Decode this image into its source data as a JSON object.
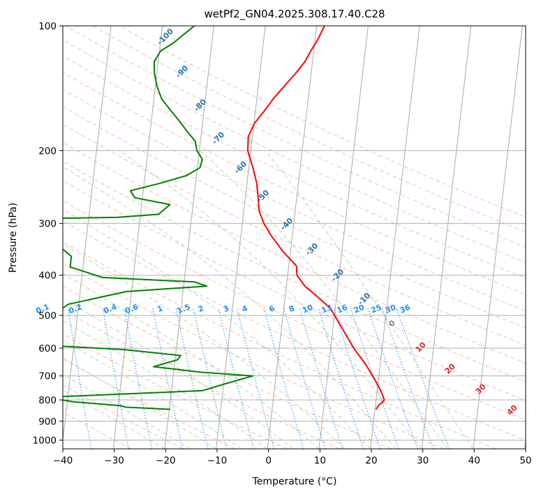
{
  "chart_data": {
    "type": "line",
    "title": "wetPf2_GN04.2025.308.17.40.C28",
    "xlabel": "Temperature (°C)",
    "ylabel": "Pressure (hPa)",
    "xlim": [
      -40,
      50
    ],
    "ylim": [
      1050,
      100
    ],
    "y_scale": "log",
    "grid": true,
    "x_ticks": [
      "−40",
      "−30",
      "−20",
      "−10",
      "0",
      "10",
      "20",
      "30",
      "40",
      "50"
    ],
    "y_ticks": [
      "100",
      "200",
      "300",
      "400",
      "500",
      "600",
      "700",
      "800",
      "900",
      "1000"
    ],
    "isotherm_labels": [
      "-100",
      "-90",
      "-80",
      "-70",
      "-60",
      "-50",
      "-40",
      "-30",
      "-20",
      "-10",
      "0",
      "10",
      "20",
      "30",
      "40"
    ],
    "mixing_ratio_labels": [
      "0.1",
      "0.2",
      "0.4",
      "0.6",
      "1",
      "1.5",
      "2",
      "3",
      "4",
      "6",
      "8",
      "10",
      "13",
      "16",
      "20",
      "25",
      "30",
      "36"
    ],
    "series": [
      {
        "color": "#ff0000",
        "points": [
          [
            20.2,
            843
          ],
          [
            20.6,
            825
          ],
          [
            21.4,
            808
          ],
          [
            21.6,
            800
          ],
          [
            21.2,
            780
          ],
          [
            20.7,
            760
          ],
          [
            19.5,
            720
          ],
          [
            17.3,
            660
          ],
          [
            14.5,
            600
          ],
          [
            12.8,
            560
          ],
          [
            11.0,
            520
          ],
          [
            9.0,
            480
          ],
          [
            6.2,
            450
          ],
          [
            3.6,
            425
          ],
          [
            1.8,
            400
          ],
          [
            1.5,
            380
          ],
          [
            -1.5,
            350
          ],
          [
            -4.2,
            320
          ],
          [
            -5.8,
            300
          ],
          [
            -7.0,
            280
          ],
          [
            -7.5,
            260
          ],
          [
            -8.1,
            240
          ],
          [
            -9.2,
            220
          ],
          [
            -10.6,
            200
          ],
          [
            -10.8,
            185
          ],
          [
            -9.9,
            172
          ],
          [
            -8.2,
            160
          ],
          [
            -6.8,
            150
          ],
          [
            -5.0,
            140
          ],
          [
            -3.0,
            130
          ],
          [
            -1.5,
            122
          ],
          [
            -0.6,
            115
          ],
          [
            0.5,
            108
          ],
          [
            1.5,
            100
          ]
        ]
      },
      {
        "color": "#008000",
        "points": [
          [
            -19.8,
            843
          ],
          [
            -28.5,
            833
          ],
          [
            -29.5,
            826
          ],
          [
            -39.0,
            808
          ],
          [
            -41.0,
            800
          ],
          [
            -44.0,
            788
          ],
          [
            -14.0,
            760
          ],
          [
            -9.5,
            730
          ],
          [
            -4.5,
            700
          ],
          [
            -15.0,
            685
          ],
          [
            -24.0,
            665
          ],
          [
            -19.5,
            640
          ],
          [
            -19.0,
            625
          ],
          [
            -30.0,
            605
          ],
          [
            -46.0,
            590
          ],
          [
            -50.5,
            565
          ],
          [
            -42.0,
            470
          ],
          [
            -31.0,
            438
          ],
          [
            -15.5,
            425
          ],
          [
            -18.0,
            415
          ],
          [
            -36.0,
            405
          ],
          [
            -42.5,
            382
          ],
          [
            -42.5,
            360
          ],
          [
            -46.5,
            330
          ],
          [
            -50.5,
            292
          ],
          [
            -34.5,
            290
          ],
          [
            -26.5,
            285
          ],
          [
            -24.5,
            270
          ],
          [
            -31.5,
            260
          ],
          [
            -32.5,
            250
          ],
          [
            -27.0,
            240
          ],
          [
            -22.0,
            230
          ],
          [
            -19.5,
            220
          ],
          [
            -19.2,
            210
          ],
          [
            -20.5,
            200
          ],
          [
            -21.0,
            190
          ],
          [
            -22.8,
            180
          ],
          [
            -24.5,
            170
          ],
          [
            -26.5,
            160
          ],
          [
            -28.5,
            150
          ],
          [
            -29.7,
            140
          ],
          [
            -30.5,
            130
          ],
          [
            -30.8,
            122
          ],
          [
            -29.8,
            115
          ],
          [
            -27.5,
            110
          ],
          [
            -23.8,
            100
          ]
        ]
      }
    ]
  }
}
